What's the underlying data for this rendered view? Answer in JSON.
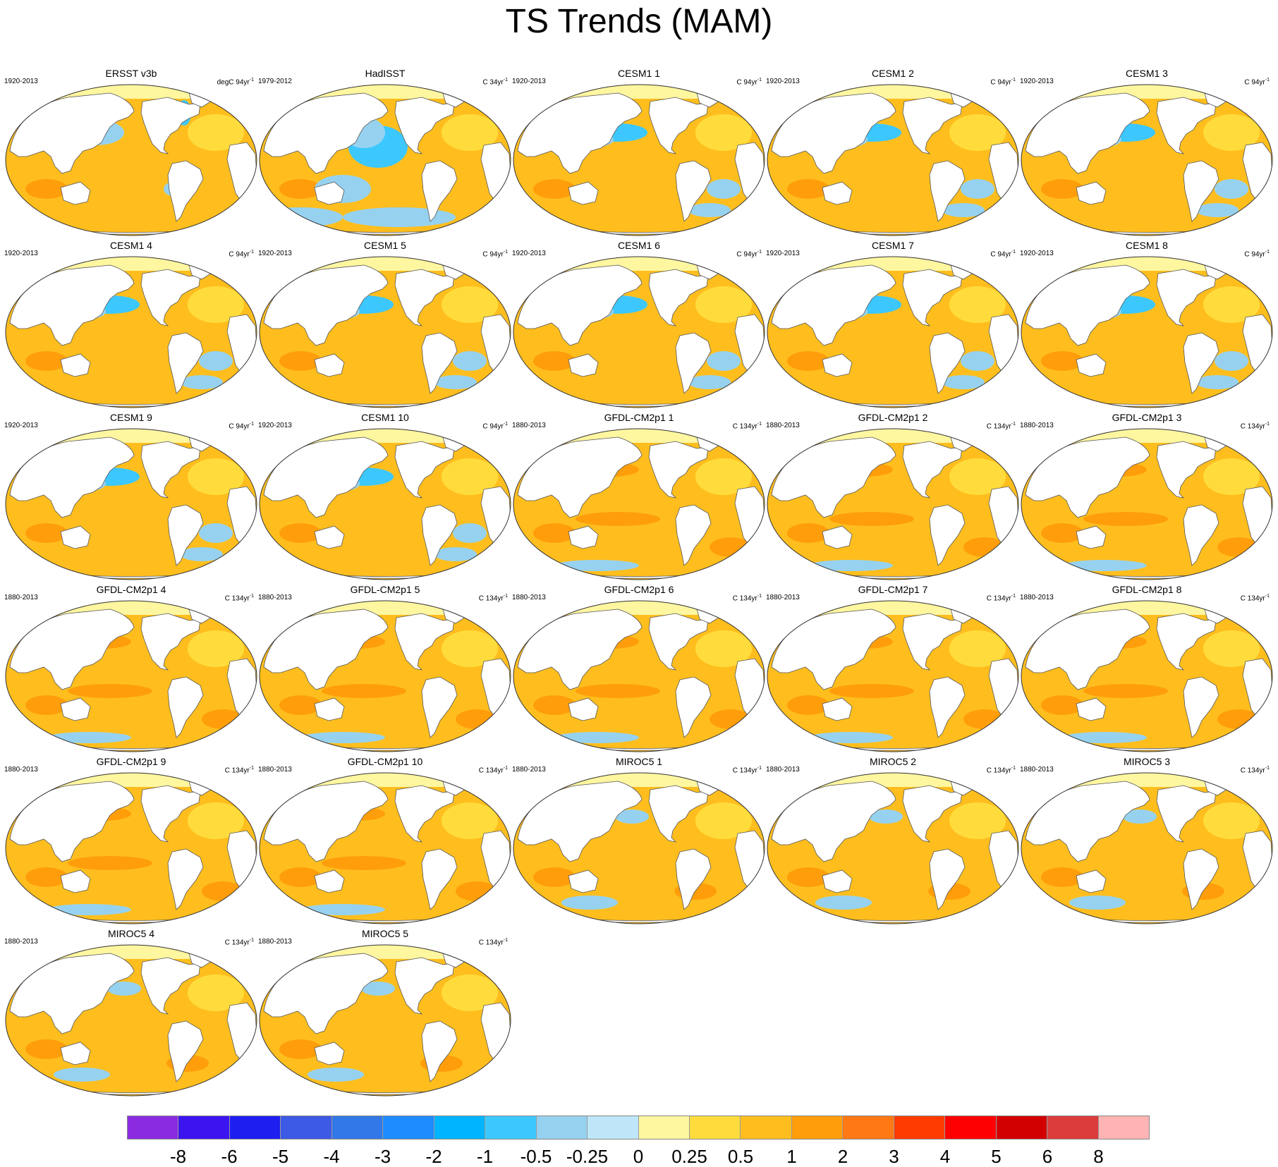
{
  "title": "TS Trends (MAM)",
  "panels": [
    {
      "title": "ERSST v3b",
      "period": "1920-2013",
      "unit": "degC 94yr",
      "variant": "obs"
    },
    {
      "title": "HadISST",
      "period": "1979-2012",
      "unit": "C 34yr",
      "variant": "had"
    },
    {
      "title": "CESM1 1",
      "period": "1920-2013",
      "unit": "C 94yr",
      "variant": "cesm"
    },
    {
      "title": "CESM1 2",
      "period": "1920-2013",
      "unit": "C 94yr",
      "variant": "cesm"
    },
    {
      "title": "CESM1 3",
      "period": "1920-2013",
      "unit": "C 94yr",
      "variant": "cesm"
    },
    {
      "title": "CESM1 4",
      "period": "1920-2013",
      "unit": "C 94yr",
      "variant": "cesm"
    },
    {
      "title": "CESM1 5",
      "period": "1920-2013",
      "unit": "C 94yr",
      "variant": "cesm"
    },
    {
      "title": "CESM1 6",
      "period": "1920-2013",
      "unit": "C 94yr",
      "variant": "cesm"
    },
    {
      "title": "CESM1 7",
      "period": "1920-2013",
      "unit": "C 94yr",
      "variant": "cesm"
    },
    {
      "title": "CESM1 8",
      "period": "1920-2013",
      "unit": "C 94yr",
      "variant": "cesm"
    },
    {
      "title": "CESM1 9",
      "period": "1920-2013",
      "unit": "C 94yr",
      "variant": "cesm"
    },
    {
      "title": "CESM1 10",
      "period": "1920-2013",
      "unit": "C 94yr",
      "variant": "cesm"
    },
    {
      "title": "GFDL-CM2p1 1",
      "period": "1880-2013",
      "unit": "C 134yr",
      "variant": "gfdl"
    },
    {
      "title": "GFDL-CM2p1 2",
      "period": "1880-2013",
      "unit": "C 134yr",
      "variant": "gfdl"
    },
    {
      "title": "GFDL-CM2p1 3",
      "period": "1880-2013",
      "unit": "C 134yr",
      "variant": "gfdl"
    },
    {
      "title": "GFDL-CM2p1 4",
      "period": "1880-2013",
      "unit": "C 134yr",
      "variant": "gfdl"
    },
    {
      "title": "GFDL-CM2p1 5",
      "period": "1880-2013",
      "unit": "C 134yr",
      "variant": "gfdl"
    },
    {
      "title": "GFDL-CM2p1 6",
      "period": "1880-2013",
      "unit": "C 134yr",
      "variant": "gfdl"
    },
    {
      "title": "GFDL-CM2p1 7",
      "period": "1880-2013",
      "unit": "C 134yr",
      "variant": "gfdl"
    },
    {
      "title": "GFDL-CM2p1 8",
      "period": "1880-2013",
      "unit": "C 134yr",
      "variant": "gfdl"
    },
    {
      "title": "GFDL-CM2p1 9",
      "period": "1880-2013",
      "unit": "C 134yr",
      "variant": "gfdl"
    },
    {
      "title": "GFDL-CM2p1 10",
      "period": "1880-2013",
      "unit": "C 134yr",
      "variant": "gfdl"
    },
    {
      "title": "MIROC5 1",
      "period": "1880-2013",
      "unit": "C 134yr",
      "variant": "miroc"
    },
    {
      "title": "MIROC5 2",
      "period": "1880-2013",
      "unit": "C 134yr",
      "variant": "miroc"
    },
    {
      "title": "MIROC5 3",
      "period": "1880-2013",
      "unit": "C 134yr",
      "variant": "miroc"
    },
    {
      "title": "MIROC5 4",
      "period": "1880-2013",
      "unit": "C 134yr",
      "variant": "miroc"
    },
    {
      "title": "MIROC5 5",
      "period": "1880-2013",
      "unit": "C 134yr",
      "variant": "miroc"
    }
  ],
  "unit_exponent": "-1",
  "colorbar": {
    "colors": [
      "#8a2be2",
      "#3c14f0",
      "#1e1ef0",
      "#3c5ae6",
      "#3278e6",
      "#1e8cff",
      "#00b4ff",
      "#3cc8ff",
      "#96d2f0",
      "#bee6f8",
      "#fff6a0",
      "#ffdc3c",
      "#ffbe1e",
      "#ff9e0a",
      "#ff7814",
      "#ff3c00",
      "#ff0000",
      "#d20000",
      "#dc3c3c",
      "#ffb4b4"
    ],
    "labels": [
      "-8",
      "-6",
      "-5",
      "-4",
      "-3",
      "-2",
      "-1",
      "-0.5",
      "-0.25",
      "0",
      "0.25",
      "0.5",
      "1",
      "2",
      "3",
      "4",
      "5",
      "6",
      "8"
    ]
  },
  "colors": {
    "ocean_warm": "#ffbe1e",
    "ocean_light": "#ffdc3c",
    "ocean_warmer": "#ff9e0a",
    "arctic": "#fff6a0",
    "cool": "#96d2f0",
    "cold": "#3cc8ff",
    "hot": "#ff3c00",
    "land": "#ffffff",
    "coast": "#555555"
  }
}
